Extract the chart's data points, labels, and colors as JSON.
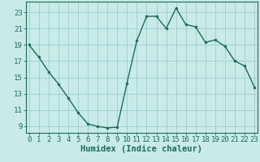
{
  "x": [
    0,
    1,
    2,
    3,
    4,
    5,
    6,
    7,
    8,
    9,
    10,
    11,
    12,
    13,
    14,
    15,
    16,
    17,
    18,
    19,
    20,
    21,
    22,
    23
  ],
  "y": [
    19.0,
    17.5,
    15.7,
    14.2,
    12.5,
    10.7,
    9.3,
    9.0,
    8.8,
    8.9,
    14.3,
    19.5,
    22.5,
    22.5,
    21.0,
    23.5,
    21.5,
    21.2,
    19.3,
    19.6,
    18.8,
    17.0,
    16.4,
    13.8
  ],
  "line_color": "#1e6b5e",
  "marker": "o",
  "marker_size": 2.0,
  "bg_color": "#c8eae8",
  "grid_color": "#9ecece",
  "xlabel": "Humidex (Indice chaleur)",
  "xlabel_fontsize": 7.5,
  "yticks": [
    9,
    11,
    13,
    15,
    17,
    19,
    21,
    23
  ],
  "xticks": [
    0,
    1,
    2,
    3,
    4,
    5,
    6,
    7,
    8,
    9,
    10,
    11,
    12,
    13,
    14,
    15,
    16,
    17,
    18,
    19,
    20,
    21,
    22,
    23
  ],
  "ylim": [
    8.2,
    24.3
  ],
  "xlim": [
    -0.3,
    23.3
  ],
  "tick_label_fontsize": 6.5,
  "line_width": 1.0
}
